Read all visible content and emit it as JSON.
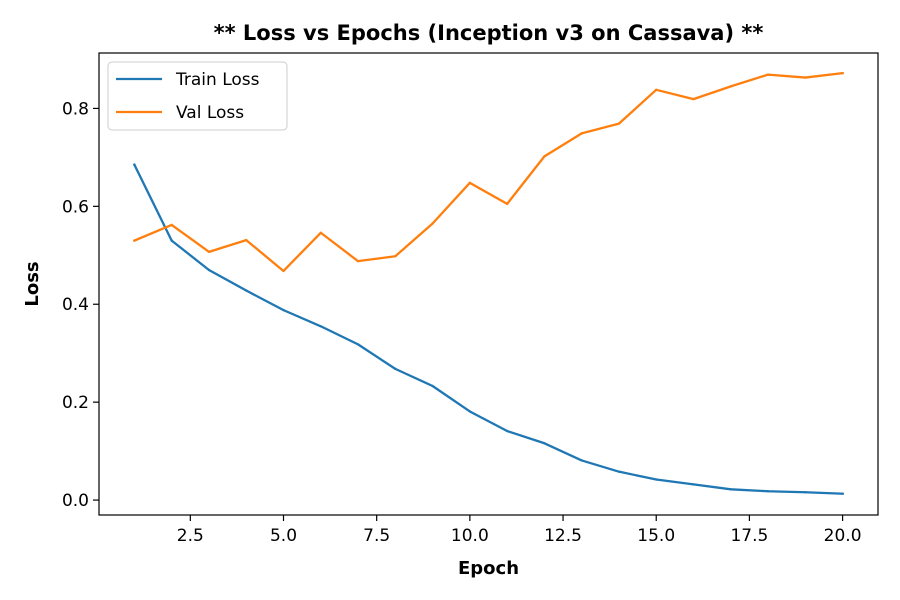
{
  "chart_data": {
    "type": "line",
    "title": "** Loss vs Epochs (Inception v3 on Cassava) **",
    "xlabel": "Epoch",
    "ylabel": "Loss",
    "xlim": [
      0.05,
      20.95
    ],
    "ylim": [
      -0.0305,
      0.9132
    ],
    "xticks": [
      2.5,
      5.0,
      7.5,
      10.0,
      12.5,
      15.0,
      17.5,
      20.0
    ],
    "xtick_labels": [
      "2.5",
      "5.0",
      "7.5",
      "10.0",
      "12.5",
      "15.0",
      "17.5",
      "20.0"
    ],
    "yticks": [
      0.0,
      0.2,
      0.4,
      0.6,
      0.8
    ],
    "ytick_labels": [
      "0.0",
      "0.2",
      "0.4",
      "0.6",
      "0.8"
    ],
    "grid": false,
    "legend_position": "top-left",
    "x": [
      1,
      2,
      3,
      4,
      5,
      6,
      7,
      8,
      9,
      10,
      11,
      12,
      13,
      14,
      15,
      16,
      17,
      18,
      19,
      20
    ],
    "series": [
      {
        "name": "Train Loss",
        "color": "#1f77b4",
        "values": [
          0.685,
          0.53,
          0.47,
          0.428,
          0.388,
          0.355,
          0.318,
          0.268,
          0.233,
          0.181,
          0.141,
          0.116,
          0.081,
          0.058,
          0.042,
          0.032,
          0.022,
          0.018,
          0.016,
          0.013
        ]
      },
      {
        "name": "Val Loss",
        "color": "#ff7f0e",
        "values": [
          0.53,
          0.562,
          0.507,
          0.531,
          0.468,
          0.546,
          0.488,
          0.498,
          0.565,
          0.648,
          0.605,
          0.702,
          0.749,
          0.769,
          0.838,
          0.819,
          0.845,
          0.869,
          0.863,
          0.872
        ]
      }
    ]
  }
}
